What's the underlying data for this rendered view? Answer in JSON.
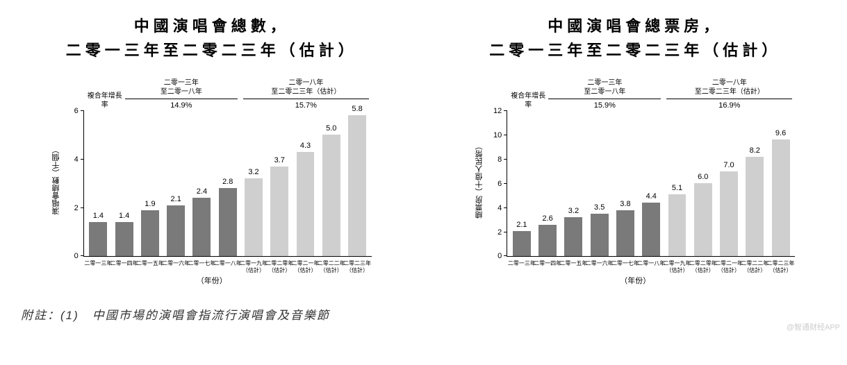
{
  "colors": {
    "bar_past": "#7a7a7a",
    "bar_forecast": "#cfcfcf",
    "axis": "#000000",
    "text": "#000000",
    "background": "#ffffff"
  },
  "left_chart": {
    "type": "bar",
    "title_line1": "中國演唱會總數，",
    "title_line2": "二零一三年至二零二三年（估計）",
    "y_axis_label": "演唱會總數（千個）",
    "x_axis_title": "（年份）",
    "ylim": [
      0,
      6
    ],
    "ytick_step": 2,
    "yticks": [
      0,
      2,
      4,
      6
    ],
    "cagr_label": "複合年增長率",
    "cagr_period1_line1": "二零一三年",
    "cagr_period1_line2": "至二零一八年",
    "cagr_value1": "14.9%",
    "cagr_period2_line1": "二零一八年",
    "cagr_period2_line2": "至二零二三年",
    "cagr_period2_line3": "（估計）",
    "cagr_value2": "15.7%",
    "bars": [
      {
        "label": "二零一三年",
        "sublabel": "",
        "value": 1.4,
        "display": "1.4",
        "forecast": false
      },
      {
        "label": "二零一四年",
        "sublabel": "",
        "value": 1.4,
        "display": "1.4",
        "forecast": false
      },
      {
        "label": "二零一五年",
        "sublabel": "",
        "value": 1.9,
        "display": "1.9",
        "forecast": false
      },
      {
        "label": "二零一六年",
        "sublabel": "",
        "value": 2.1,
        "display": "2.1",
        "forecast": false
      },
      {
        "label": "二零一七年",
        "sublabel": "",
        "value": 2.4,
        "display": "2.4",
        "forecast": false
      },
      {
        "label": "二零一八年",
        "sublabel": "",
        "value": 2.8,
        "display": "2.8",
        "forecast": false
      },
      {
        "label": "二零一九年",
        "sublabel": "（估計）",
        "value": 3.2,
        "display": "3.2",
        "forecast": true
      },
      {
        "label": "二零二零年",
        "sublabel": "（估計）",
        "value": 3.7,
        "display": "3.7",
        "forecast": true
      },
      {
        "label": "二零二一年",
        "sublabel": "（估計）",
        "value": 4.3,
        "display": "4.3",
        "forecast": true
      },
      {
        "label": "二零二二年",
        "sublabel": "（估計）",
        "value": 5.0,
        "display": "5.0",
        "forecast": true
      },
      {
        "label": "二零二三年",
        "sublabel": "（估計）",
        "value": 5.8,
        "display": "5.8",
        "forecast": true
      }
    ]
  },
  "right_chart": {
    "type": "bar",
    "title_line1": "中國演唱會總票房，",
    "title_line2": "二零一三年至二零二三年（估計）",
    "y_axis_label": "總票房（十億人民幣）",
    "x_axis_title": "（年份）",
    "ylim": [
      0,
      12
    ],
    "ytick_step": 2,
    "yticks": [
      0,
      2,
      4,
      6,
      8,
      10,
      12
    ],
    "cagr_label": "複合年增長率",
    "cagr_period1_line1": "二零一三年",
    "cagr_period1_line2": "至二零一八年",
    "cagr_value1": "15.9%",
    "cagr_period2_line1": "二零一八年",
    "cagr_period2_line2": "至二零二三年",
    "cagr_period2_line3": "（估計）",
    "cagr_value2": "16.9%",
    "bars": [
      {
        "label": "二零一三年",
        "sublabel": "",
        "value": 2.1,
        "display": "2.1",
        "forecast": false
      },
      {
        "label": "二零一四年",
        "sublabel": "",
        "value": 2.6,
        "display": "2.6",
        "forecast": false
      },
      {
        "label": "二零一五年",
        "sublabel": "",
        "value": 3.2,
        "display": "3.2",
        "forecast": false
      },
      {
        "label": "二零一六年",
        "sublabel": "",
        "value": 3.5,
        "display": "3.5",
        "forecast": false
      },
      {
        "label": "二零一七年",
        "sublabel": "",
        "value": 3.8,
        "display": "3.8",
        "forecast": false
      },
      {
        "label": "二零一八年",
        "sublabel": "",
        "value": 4.4,
        "display": "4.4",
        "forecast": false
      },
      {
        "label": "二零一九年",
        "sublabel": "（估計）",
        "value": 5.1,
        "display": "5.1",
        "forecast": true
      },
      {
        "label": "二零二零年",
        "sublabel": "（估計）",
        "value": 6.0,
        "display": "6.0",
        "forecast": true
      },
      {
        "label": "二零二一年",
        "sublabel": "（估計）",
        "value": 7.0,
        "display": "7.0",
        "forecast": true
      },
      {
        "label": "二零二二年",
        "sublabel": "（估計）",
        "value": 8.2,
        "display": "8.2",
        "forecast": true
      },
      {
        "label": "二零二三年",
        "sublabel": "（估計）",
        "value": 9.6,
        "display": "9.6",
        "forecast": true
      }
    ]
  },
  "footnote": "附註：(1)　中國市場的演唱會指流行演唱會及音樂節",
  "watermark": "@智通财经APP"
}
